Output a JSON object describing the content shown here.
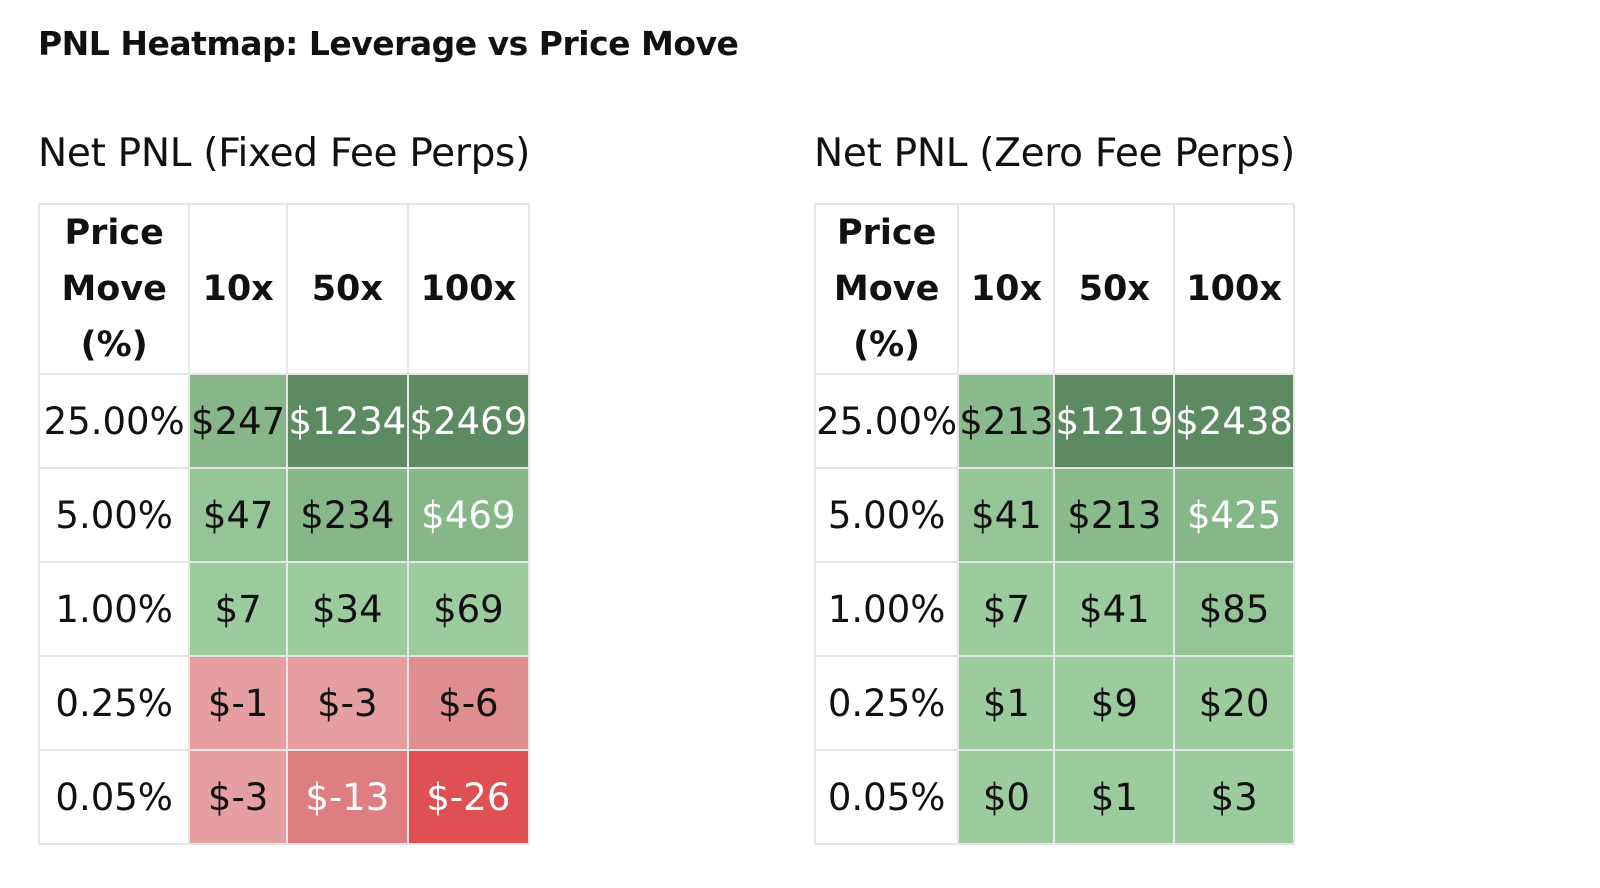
{
  "title": "PNL Heatmap: Leverage vs Price Move",
  "chart_data": [
    {
      "type": "heatmap",
      "title": "Net PNL (Fixed Fee Perps)",
      "row_header": "Price Move (%)",
      "columns": [
        "10x",
        "50x",
        "100x"
      ],
      "rows": [
        "25.00%",
        "5.00%",
        "1.00%",
        "0.25%",
        "0.05%"
      ],
      "values": [
        [
          247,
          1234,
          2469
        ],
        [
          47,
          234,
          469
        ],
        [
          7,
          34,
          69
        ],
        [
          -1,
          -3,
          -6
        ],
        [
          -3,
          -13,
          -26
        ]
      ],
      "labels": [
        [
          "$247",
          "$1234",
          "$2469"
        ],
        [
          "$47",
          "$234",
          "$469"
        ],
        [
          "$7",
          "$34",
          "$69"
        ],
        [
          "$-1",
          "$-3",
          "$-6"
        ],
        [
          "$-3",
          "$-13",
          "$-26"
        ]
      ],
      "colors": [
        [
          "#87b689",
          "#5d8a61",
          "#5d8a61"
        ],
        [
          "#95c497",
          "#87b689",
          "#87b689"
        ],
        [
          "#9ccc9d",
          "#9ccc9d",
          "#9ccc9d"
        ],
        [
          "#e59fa0",
          "#e59fa0",
          "#e08d8f"
        ],
        [
          "#e59fa0",
          "#de7e80",
          "#de5052"
        ]
      ],
      "text_colors": [
        [
          "#111111",
          "#ffffff",
          "#ffffff"
        ],
        [
          "#111111",
          "#111111",
          "#ffffff"
        ],
        [
          "#111111",
          "#111111",
          "#111111"
        ],
        [
          "#111111",
          "#111111",
          "#111111"
        ],
        [
          "#111111",
          "#ffffff",
          "#ffffff"
        ]
      ]
    },
    {
      "type": "heatmap",
      "title": "Net PNL (Zero Fee Perps)",
      "row_header": "Price Move (%)",
      "columns": [
        "10x",
        "50x",
        "100x"
      ],
      "rows": [
        "25.00%",
        "5.00%",
        "1.00%",
        "0.25%",
        "0.05%"
      ],
      "values": [
        [
          213,
          1219,
          2438
        ],
        [
          41,
          213,
          425
        ],
        [
          7,
          41,
          85
        ],
        [
          1,
          9,
          20
        ],
        [
          0,
          1,
          3
        ]
      ],
      "labels": [
        [
          "$213",
          "$1219",
          "$2438"
        ],
        [
          "$41",
          "$213",
          "$425"
        ],
        [
          "$7",
          "$41",
          "$85"
        ],
        [
          "$1",
          "$9",
          "$20"
        ],
        [
          "$0",
          "$1",
          "$3"
        ]
      ],
      "colors": [
        [
          "#8abb8c",
          "#5d8a61",
          "#5d8a61"
        ],
        [
          "#95c497",
          "#8abb8c",
          "#87b689"
        ],
        [
          "#9ccc9d",
          "#9ccc9d",
          "#95c497"
        ],
        [
          "#9ccc9d",
          "#9ccc9d",
          "#9ccc9d"
        ],
        [
          "#9ccc9d",
          "#9ccc9d",
          "#9ccc9d"
        ]
      ],
      "text_colors": [
        [
          "#111111",
          "#ffffff",
          "#ffffff"
        ],
        [
          "#111111",
          "#111111",
          "#ffffff"
        ],
        [
          "#111111",
          "#111111",
          "#111111"
        ],
        [
          "#111111",
          "#111111",
          "#111111"
        ],
        [
          "#111111",
          "#111111",
          "#111111"
        ]
      ]
    }
  ]
}
